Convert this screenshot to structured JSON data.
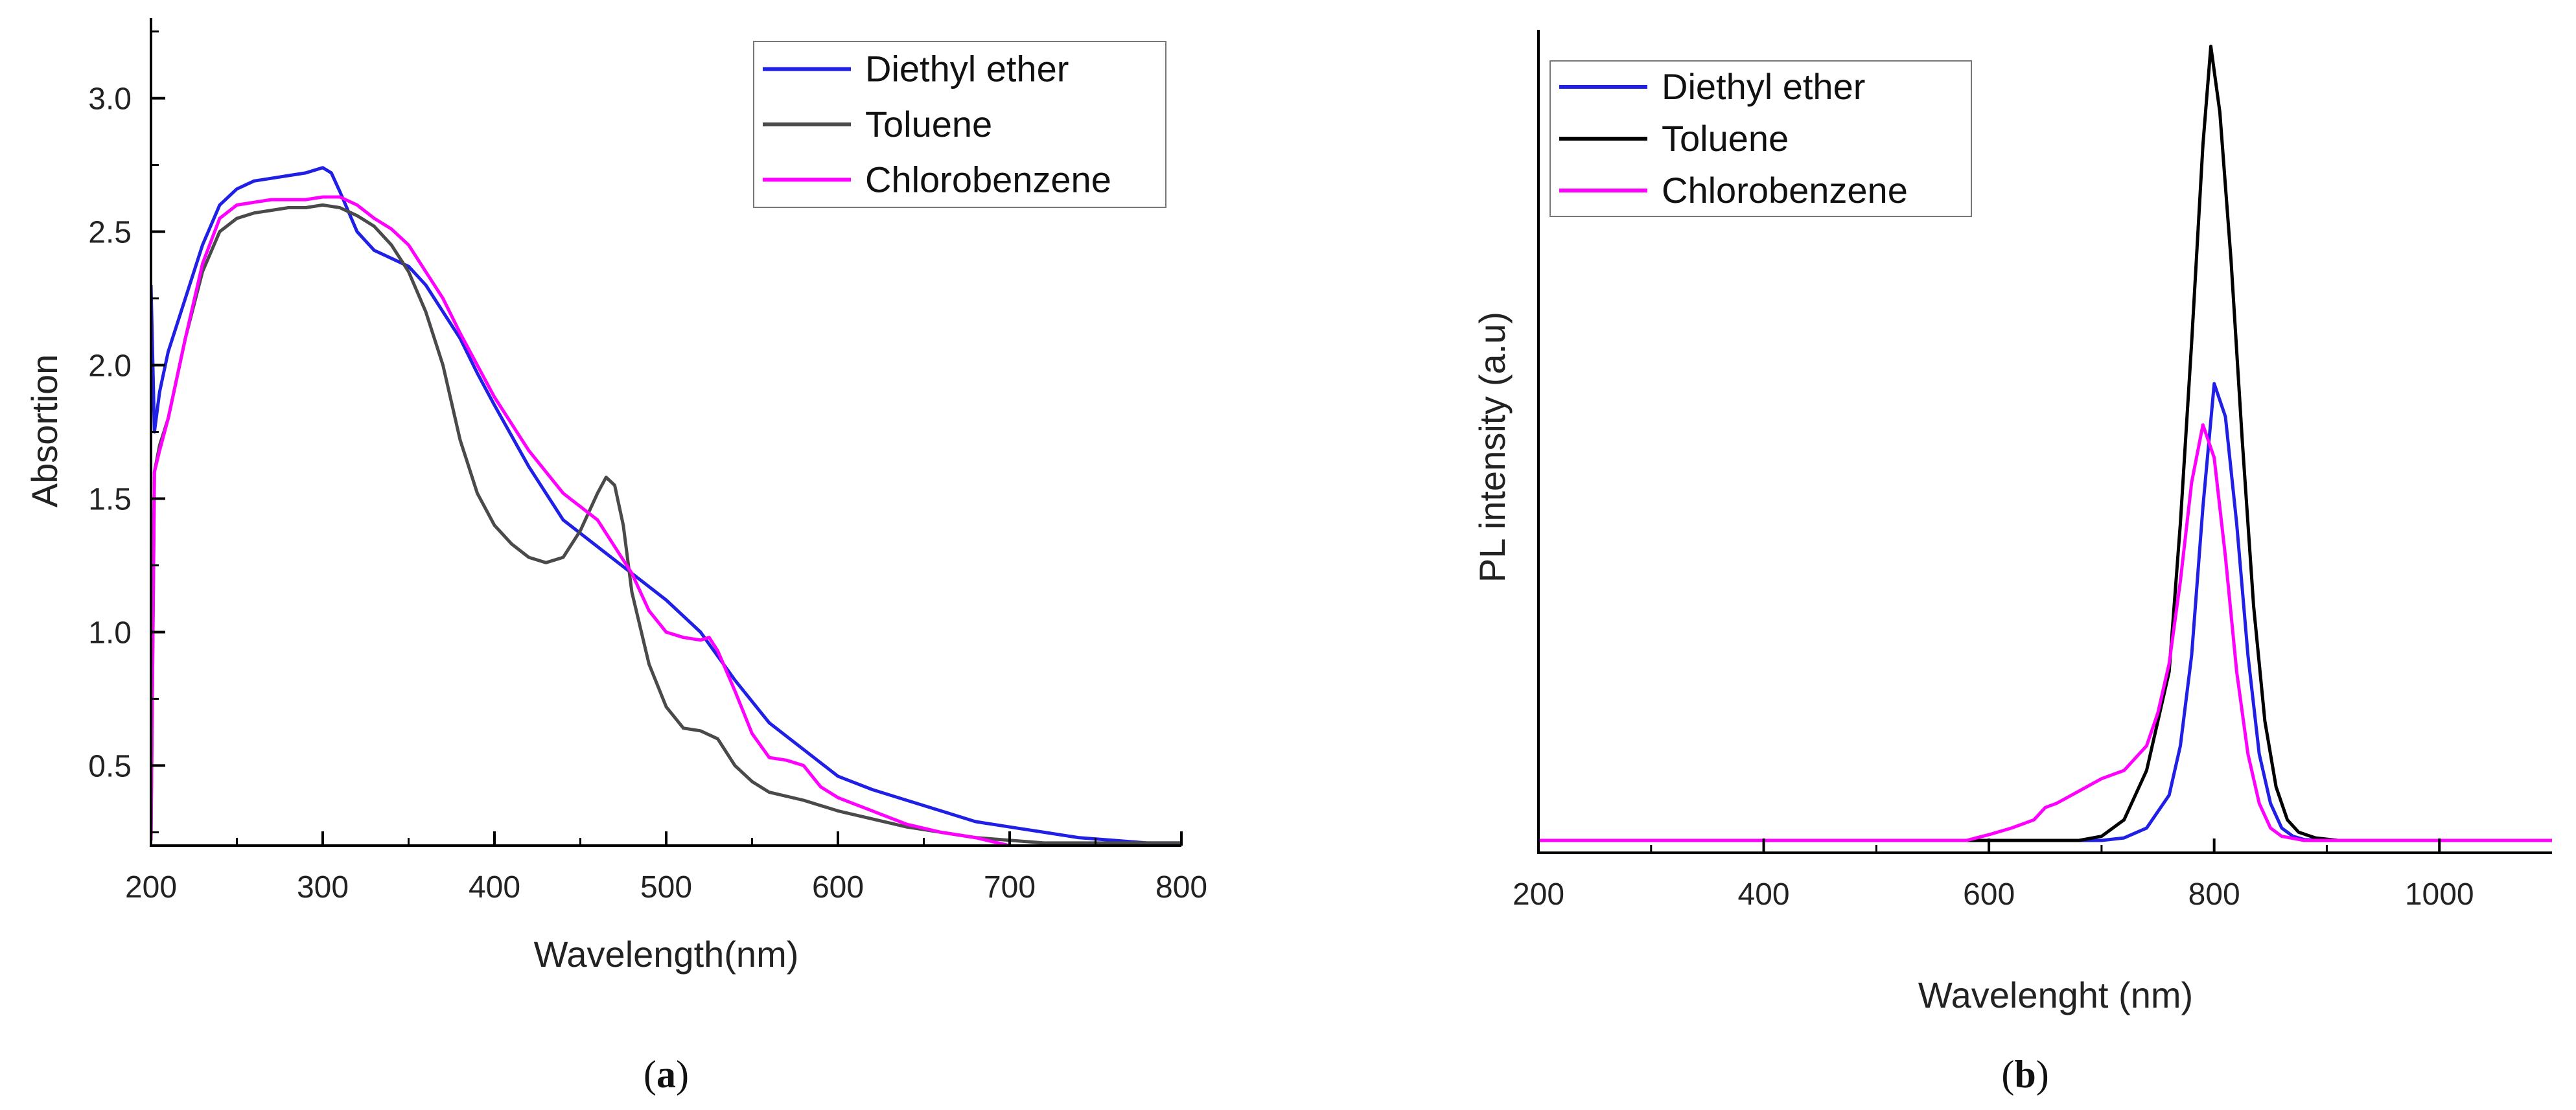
{
  "colors": {
    "blue": "#1f1fe6",
    "gray": "#4a4a4a",
    "black": "#000000",
    "magenta": "#ff00ff",
    "axis": "#000000"
  },
  "panels": [
    {
      "panel_label_open": "(",
      "panel_label_letter": "a",
      "panel_label_close": ")",
      "chart_data": {
        "type": "line",
        "title": "",
        "xlabel": "Wavelength(nm)",
        "ylabel": "Absortion",
        "xlim": [
          200,
          800
        ],
        "ylim": [
          0.2,
          3.3
        ],
        "xticks": [
          200,
          300,
          400,
          500,
          600,
          700,
          800
        ],
        "xtick_labels": [
          "200",
          "300",
          "400",
          "500",
          "600",
          "700",
          "800"
        ],
        "yticks": [
          0.5,
          1.0,
          1.5,
          2.0,
          2.5,
          3.0
        ],
        "ytick_labels": [
          "0.5",
          "1.0",
          "1.5",
          "2.0",
          "2.5",
          "3.0"
        ],
        "legend_position": "top-right",
        "series": [
          {
            "name": "Diethyl ether",
            "color": "#1f1fe6",
            "x": [
              200,
              202,
              205,
              210,
              220,
              230,
              240,
              250,
              260,
              270,
              280,
              290,
              295,
              300,
              305,
              310,
              320,
              330,
              340,
              350,
              360,
              370,
              380,
              390,
              400,
              420,
              440,
              460,
              480,
              500,
              520,
              540,
              560,
              580,
              600,
              620,
              640,
              660,
              680,
              700,
              720,
              740,
              760,
              780,
              800
            ],
            "y": [
              2.3,
              1.75,
              1.9,
              2.05,
              2.25,
              2.45,
              2.6,
              2.66,
              2.69,
              2.7,
              2.71,
              2.72,
              2.73,
              2.74,
              2.72,
              2.65,
              2.5,
              2.43,
              2.4,
              2.37,
              2.3,
              2.2,
              2.1,
              1.97,
              1.85,
              1.62,
              1.42,
              1.32,
              1.22,
              1.12,
              1.0,
              0.82,
              0.66,
              0.56,
              0.46,
              0.41,
              0.37,
              0.33,
              0.29,
              0.27,
              0.25,
              0.23,
              0.22,
              0.21,
              0.21
            ]
          },
          {
            "name": "Toluene",
            "color": "#4a4a4a",
            "x": [
              200,
              202,
              205,
              210,
              220,
              230,
              240,
              250,
              260,
              270,
              280,
              290,
              300,
              310,
              320,
              330,
              340,
              350,
              360,
              370,
              380,
              390,
              400,
              410,
              420,
              430,
              440,
              450,
              460,
              465,
              470,
              475,
              480,
              490,
              500,
              510,
              520,
              530,
              540,
              550,
              560,
              580,
              600,
              620,
              640,
              660,
              680,
              700,
              720,
              740,
              760,
              780,
              800
            ],
            "y": [
              0.22,
              1.6,
              1.7,
              1.8,
              2.1,
              2.35,
              2.5,
              2.55,
              2.57,
              2.58,
              2.59,
              2.59,
              2.6,
              2.59,
              2.56,
              2.52,
              2.45,
              2.35,
              2.2,
              2.0,
              1.72,
              1.52,
              1.4,
              1.33,
              1.28,
              1.26,
              1.28,
              1.38,
              1.52,
              1.58,
              1.55,
              1.4,
              1.15,
              0.88,
              0.72,
              0.64,
              0.63,
              0.6,
              0.5,
              0.44,
              0.4,
              0.37,
              0.33,
              0.3,
              0.27,
              0.25,
              0.23,
              0.22,
              0.21,
              0.21,
              0.21,
              0.21,
              0.21
            ]
          },
          {
            "name": "Chlorobenzene",
            "color": "#ff00ff",
            "x": [
              200,
              202,
              205,
              210,
              220,
              230,
              240,
              250,
              260,
              270,
              280,
              290,
              300,
              310,
              320,
              330,
              340,
              350,
              360,
              370,
              380,
              390,
              400,
              420,
              440,
              460,
              480,
              490,
              500,
              510,
              520,
              525,
              530,
              540,
              550,
              560,
              570,
              580,
              590,
              600,
              620,
              640,
              660,
              680,
              700
            ],
            "y": [
              0.22,
              1.6,
              1.68,
              1.8,
              2.1,
              2.38,
              2.55,
              2.6,
              2.61,
              2.62,
              2.62,
              2.62,
              2.63,
              2.63,
              2.6,
              2.55,
              2.51,
              2.45,
              2.35,
              2.25,
              2.12,
              2.0,
              1.88,
              1.68,
              1.52,
              1.42,
              1.22,
              1.08,
              1.0,
              0.98,
              0.97,
              0.98,
              0.93,
              0.78,
              0.62,
              0.53,
              0.52,
              0.5,
              0.42,
              0.38,
              0.33,
              0.28,
              0.25,
              0.23,
              0.2
            ]
          }
        ]
      }
    },
    {
      "panel_label_open": "(",
      "panel_label_letter": "b",
      "panel_label_close": ")",
      "chart_data": {
        "type": "line",
        "title": "",
        "xlabel": "Wavelenght (nm)",
        "ylabel": "PL intensity (a.u)",
        "xlim": [
          200,
          1100
        ],
        "ylim": [
          0,
          1.0
        ],
        "xticks": [
          200,
          400,
          600,
          800,
          1000
        ],
        "xtick_labels": [
          "200",
          "400",
          "600",
          "800",
          "1000"
        ],
        "yticks": [],
        "ytick_labels": [],
        "legend_position": "top-left",
        "series": [
          {
            "name": "Diethyl ether",
            "color": "#1f1fe6",
            "x": [
              200,
              700,
              720,
              740,
              760,
              770,
              780,
              790,
              800,
              810,
              820,
              830,
              840,
              850,
              860,
              870,
              880,
              900,
              1100
            ],
            "y": [
              0.015,
              0.015,
              0.018,
              0.03,
              0.07,
              0.13,
              0.24,
              0.42,
              0.57,
              0.53,
              0.4,
              0.24,
              0.12,
              0.06,
              0.03,
              0.02,
              0.016,
              0.015,
              0.015
            ]
          },
          {
            "name": "Toluene",
            "color": "#000000",
            "x": [
              200,
              680,
              700,
              720,
              740,
              760,
              770,
              780,
              790,
              797,
              805,
              815,
              825,
              835,
              845,
              855,
              865,
              875,
              890,
              910,
              1100
            ],
            "y": [
              0.015,
              0.015,
              0.02,
              0.04,
              0.1,
              0.22,
              0.4,
              0.62,
              0.86,
              0.98,
              0.9,
              0.72,
              0.5,
              0.3,
              0.16,
              0.08,
              0.04,
              0.025,
              0.018,
              0.015,
              0.015
            ]
          },
          {
            "name": "Chlorobenzene",
            "color": "#ff00ff",
            "x": [
              200,
              580,
              600,
              620,
              640,
              650,
              660,
              680,
              700,
              720,
              740,
              750,
              760,
              770,
              780,
              790,
              800,
              810,
              820,
              830,
              840,
              850,
              860,
              880,
              900,
              1100
            ],
            "y": [
              0.015,
              0.015,
              0.022,
              0.03,
              0.04,
              0.055,
              0.06,
              0.075,
              0.09,
              0.1,
              0.13,
              0.17,
              0.23,
              0.33,
              0.45,
              0.52,
              0.48,
              0.36,
              0.22,
              0.12,
              0.06,
              0.03,
              0.02,
              0.015,
              0.015,
              0.015
            ]
          }
        ]
      }
    }
  ]
}
